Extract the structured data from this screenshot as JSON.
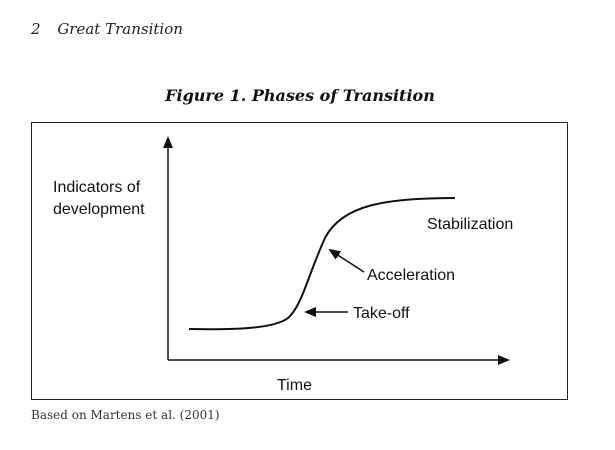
{
  "header": {
    "page_number": "2",
    "running_title": "Great Transition"
  },
  "figure": {
    "title": "Figure 1. Phases of Transition",
    "y_axis_label_line1": "Indicators of",
    "y_axis_label_line2": "development",
    "x_axis_label": "Time",
    "phases": {
      "takeoff": "Take-off",
      "acceleration": "Acceleration",
      "stabilization": "Stabilization"
    }
  },
  "caption": "Based on Martens et al. (2001)",
  "colors": {
    "ink": "#111111",
    "background": "#ffffff"
  }
}
